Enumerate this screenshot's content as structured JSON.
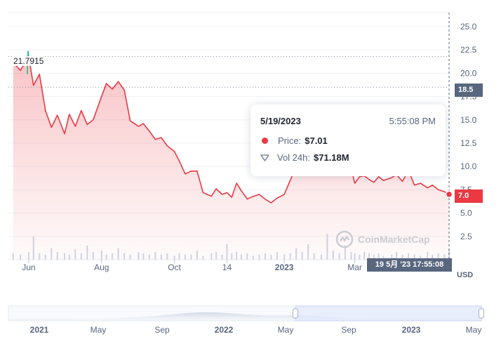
{
  "chart_data": {
    "type": "line",
    "series": [
      {
        "x": [
          "2022-05-19",
          "2022-05-25",
          "2022-06-01",
          "2022-06-05",
          "2022-06-10",
          "2022-06-15",
          "2022-06-20",
          "2022-06-25",
          "2022-07-01",
          "2022-07-05",
          "2022-07-10",
          "2022-07-15",
          "2022-07-20",
          "2022-07-25",
          "2022-08-01",
          "2022-08-05",
          "2022-08-10",
          "2022-08-15",
          "2022-08-20",
          "2022-08-25",
          "2022-09-01",
          "2022-09-05",
          "2022-09-10",
          "2022-09-15",
          "2022-09-20",
          "2022-09-25",
          "2022-10-01",
          "2022-10-05",
          "2022-10-10",
          "2022-10-15",
          "2022-10-20",
          "2022-10-25",
          "2022-11-01",
          "2022-11-05",
          "2022-11-10",
          "2022-11-14",
          "2022-11-18",
          "2022-11-22",
          "2022-11-26",
          "2022-12-01",
          "2022-12-06",
          "2022-12-11",
          "2022-12-16",
          "2022-12-21",
          "2022-12-26",
          "2023-01-01",
          "2023-01-06",
          "2023-01-11",
          "2023-01-16",
          "2023-01-21",
          "2023-01-26",
          "2023-02-01",
          "2023-02-06",
          "2023-02-11",
          "2023-02-16",
          "2023-02-21",
          "2023-02-26",
          "2023-03-01",
          "2023-03-05",
          "2023-03-09",
          "2023-03-13",
          "2023-03-17",
          "2023-03-21",
          "2023-03-25",
          "2023-04-01",
          "2023-04-05",
          "2023-04-10",
          "2023-04-15",
          "2023-04-20",
          "2023-04-25",
          "2023-05-01",
          "2023-05-05",
          "2023-05-10",
          "2023-05-15",
          "2023-05-19"
        ],
        "values": [
          21.2,
          20.3,
          21.8,
          18.7,
          19.9,
          16.0,
          14.2,
          15.5,
          13.5,
          15.6,
          14.3,
          16.0,
          14.5,
          15.0,
          17.5,
          18.9,
          18.3,
          19.1,
          18.2,
          14.9,
          14.3,
          14.6,
          13.8,
          12.9,
          13.1,
          12.2,
          11.6,
          10.6,
          9.2,
          9.5,
          9.5,
          7.2,
          6.8,
          7.6,
          7.0,
          7.2,
          6.7,
          8.2,
          7.4,
          6.5,
          6.8,
          7.0,
          6.5,
          6.1,
          6.6,
          7.0,
          8.5,
          10.0,
          11.0,
          10.5,
          11.5,
          12.0,
          11.3,
          10.5,
          10.8,
          10.2,
          9.8,
          8.2,
          8.9,
          9.0,
          8.6,
          8.3,
          8.9,
          8.5,
          8.8,
          9.1,
          8.4,
          9.6,
          8.0,
          8.2,
          7.7,
          8.0,
          7.5,
          7.3,
          7.01
        ]
      }
    ],
    "volume": [
      0.5,
      0.4,
      0.6,
      1.8,
      0.5,
      0.4,
      0.9,
      0.6,
      0.5,
      0.4,
      0.8,
      0.5,
      1.1,
      0.6,
      0.7,
      0.4,
      0.5,
      0.9,
      0.5,
      0.4,
      0.6,
      0.5,
      0.4,
      0.6,
      0.4,
      0.5,
      0.3,
      0.5,
      0.4,
      0.4,
      0.7,
      0.3,
      0.5,
      0.6,
      0.4,
      1.2,
      0.5,
      0.6,
      0.4,
      0.5,
      0.3,
      0.4,
      0.5,
      0.4,
      0.6,
      0.4,
      0.5,
      0.9,
      0.6,
      1.2,
      0.5,
      0.4,
      2.0,
      0.7,
      0.5,
      1.1,
      0.6,
      0.5,
      0.4,
      0.6,
      0.5,
      0.4,
      0.5,
      0.3,
      0.4,
      0.6,
      0.4,
      0.5,
      0.4,
      0.3,
      0.6,
      0.4,
      0.5,
      0.4,
      0.8
    ],
    "ylim": [
      0,
      26.5
    ],
    "y_ticks": [
      "25.0",
      "22.5",
      "20.0",
      "17.5",
      "15.0",
      "12.5",
      "10.0",
      "7.5",
      "5.0",
      "2.5"
    ],
    "x_ticks": [
      {
        "label": "Jun",
        "date": "2022-06-01",
        "bold": false
      },
      {
        "label": "Aug",
        "date": "2022-08-01",
        "bold": false
      },
      {
        "label": "Oct",
        "date": "2022-10-01",
        "bold": false
      },
      {
        "label": "14",
        "date": "2022-11-14",
        "bold": false
      },
      {
        "label": "2023",
        "date": "2023-01-01",
        "bold": true
      },
      {
        "label": "Mar",
        "date": "2023-03-01",
        "bold": false
      }
    ],
    "x_range": [
      "2022-05-15",
      "2023-05-19"
    ],
    "reference_line": 18.5,
    "high_line": 21.7915,
    "high_label": "21.7915",
    "price_badge": "7.0",
    "reference_badge": "18.5",
    "crosshair_date": "19 5月 '23   17:55:08",
    "currency": "USD",
    "grid": true,
    "colors": {
      "line": "#ea3943",
      "up": "#16c784",
      "grid": "#eff2f5",
      "volume": "#cfd6e4",
      "text": "#58667e"
    },
    "navigator": {
      "ticks": [
        {
          "label": "2021",
          "bold": true
        },
        {
          "label": "May",
          "bold": false
        },
        {
          "label": "Sep",
          "bold": false
        },
        {
          "label": "2022",
          "bold": true
        },
        {
          "label": "May",
          "bold": false
        },
        {
          "label": "Sep",
          "bold": false
        },
        {
          "label": "2023",
          "bold": true
        },
        {
          "label": "May",
          "bold": false
        }
      ],
      "selected_range": [
        "2022-05-19",
        "2023-05-19"
      ]
    }
  },
  "tooltip": {
    "date": "5/19/2023",
    "time": "5:55:08 PM",
    "price_label": "Price:",
    "price_value": "$7.01",
    "vol_label": "Vol 24h:",
    "vol_value": "$71.18M"
  },
  "watermark": "CoinMarketCap"
}
